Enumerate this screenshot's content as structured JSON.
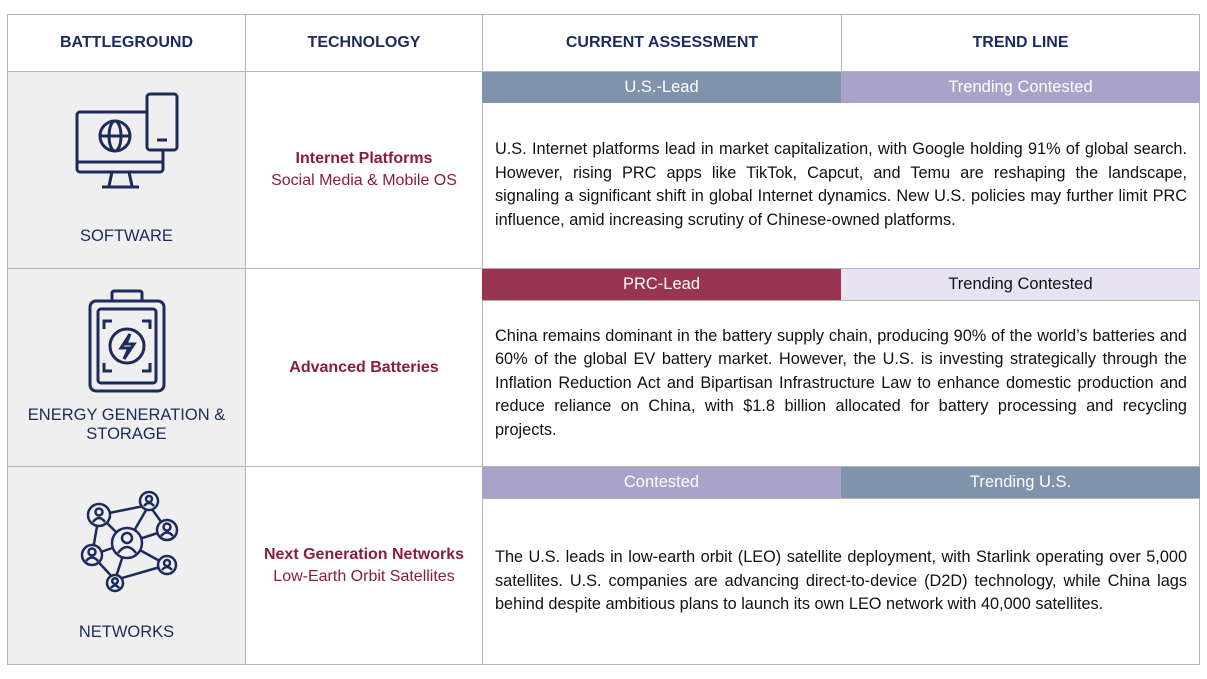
{
  "header": {
    "columns": [
      "BATTLEGROUND",
      "TECHNOLOGY",
      "CURRENT ASSESSMENT",
      "TREND LINE"
    ]
  },
  "rows": [
    {
      "battleground": "SOFTWARE",
      "technology": "Internet Platforms",
      "technology_detail": "Social Media & Mobile OS",
      "assessment": "U.S.-Lead",
      "trend": "Trending Contested",
      "description": "U.S. Internet platforms lead in market capitalization, with Google holding 91% of global search. However, rising PRC apps like TikTok, Capcut, and Temu are reshaping the landscape, signaling a significant shift in global Internet dynamics. New U.S. policies may further limit PRC influence, amid increasing scrutiny of Chinese-owned platforms."
    },
    {
      "battleground": "ENERGY GENERATION & STORAGE",
      "technology": "Advanced Batteries",
      "assessment": "PRC-Lead",
      "trend": "Trending Contested",
      "description": "China remains dominant in the battery supply chain, producing 90% of the world’s batteries and 60% of the global EV battery market. However, the U.S. is investing strategically through the Inflation Reduction Act and Bipartisan Infrastructure Law to enhance domestic production and reduce reliance on China, with $1.8 billion allocated for battery processing and recycling projects."
    },
    {
      "battleground": "NETWORKS",
      "technology": "Next Generation Networks",
      "technology_detail": "Low-Earth Orbit Satellites",
      "assessment": "Contested",
      "trend": "Trending U.S.",
      "description": "The U.S. leads in low-earth orbit (LEO) satellite deployment, with Starlink operating over 5,000 satellites. U.S. companies are advancing direct-to-device (D2D) technology, while China lags behind despite ambitious plans to launch its own LEO network with 40,000 satellites."
    }
  ]
}
